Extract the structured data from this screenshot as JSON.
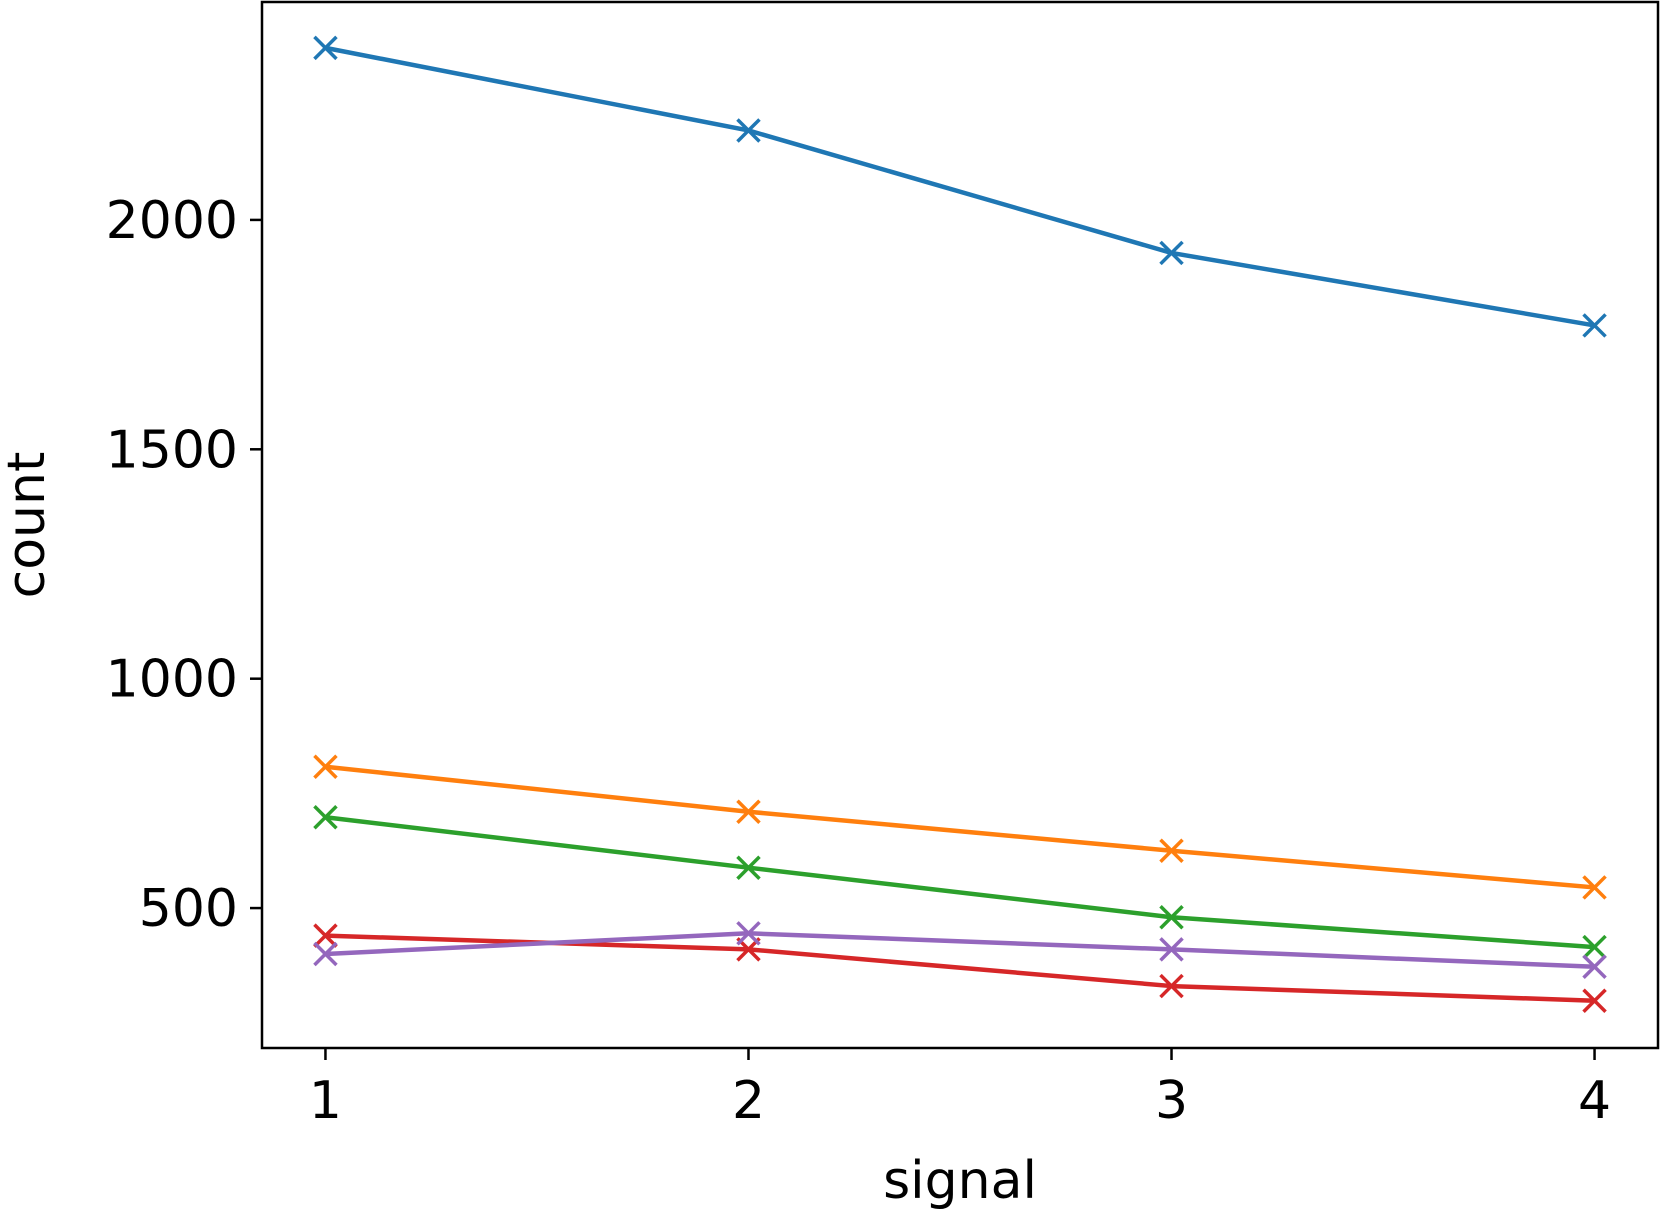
{
  "chart_data": {
    "type": "line",
    "title": "",
    "xlabel": "signal",
    "ylabel": "count",
    "x": [
      1,
      2,
      3,
      4
    ],
    "xticks": [
      "1",
      "2",
      "3",
      "4"
    ],
    "yticks": [
      "500",
      "1000",
      "1500",
      "2000"
    ],
    "xlim": [
      0.85,
      4.15
    ],
    "ylim": [
      195,
      2475
    ],
    "grid": false,
    "marker": "x",
    "series": [
      {
        "color": "#1f77b4",
        "values": [
          2375,
          2195,
          1928,
          1770
        ]
      },
      {
        "color": "#ff7f0e",
        "values": [
          808,
          710,
          625,
          545
        ]
      },
      {
        "color": "#2ca02c",
        "values": [
          698,
          588,
          480,
          415
        ]
      },
      {
        "color": "#d62728",
        "values": [
          440,
          410,
          330,
          298
        ]
      },
      {
        "color": "#9467bd",
        "values": [
          400,
          445,
          410,
          372
        ]
      }
    ]
  }
}
